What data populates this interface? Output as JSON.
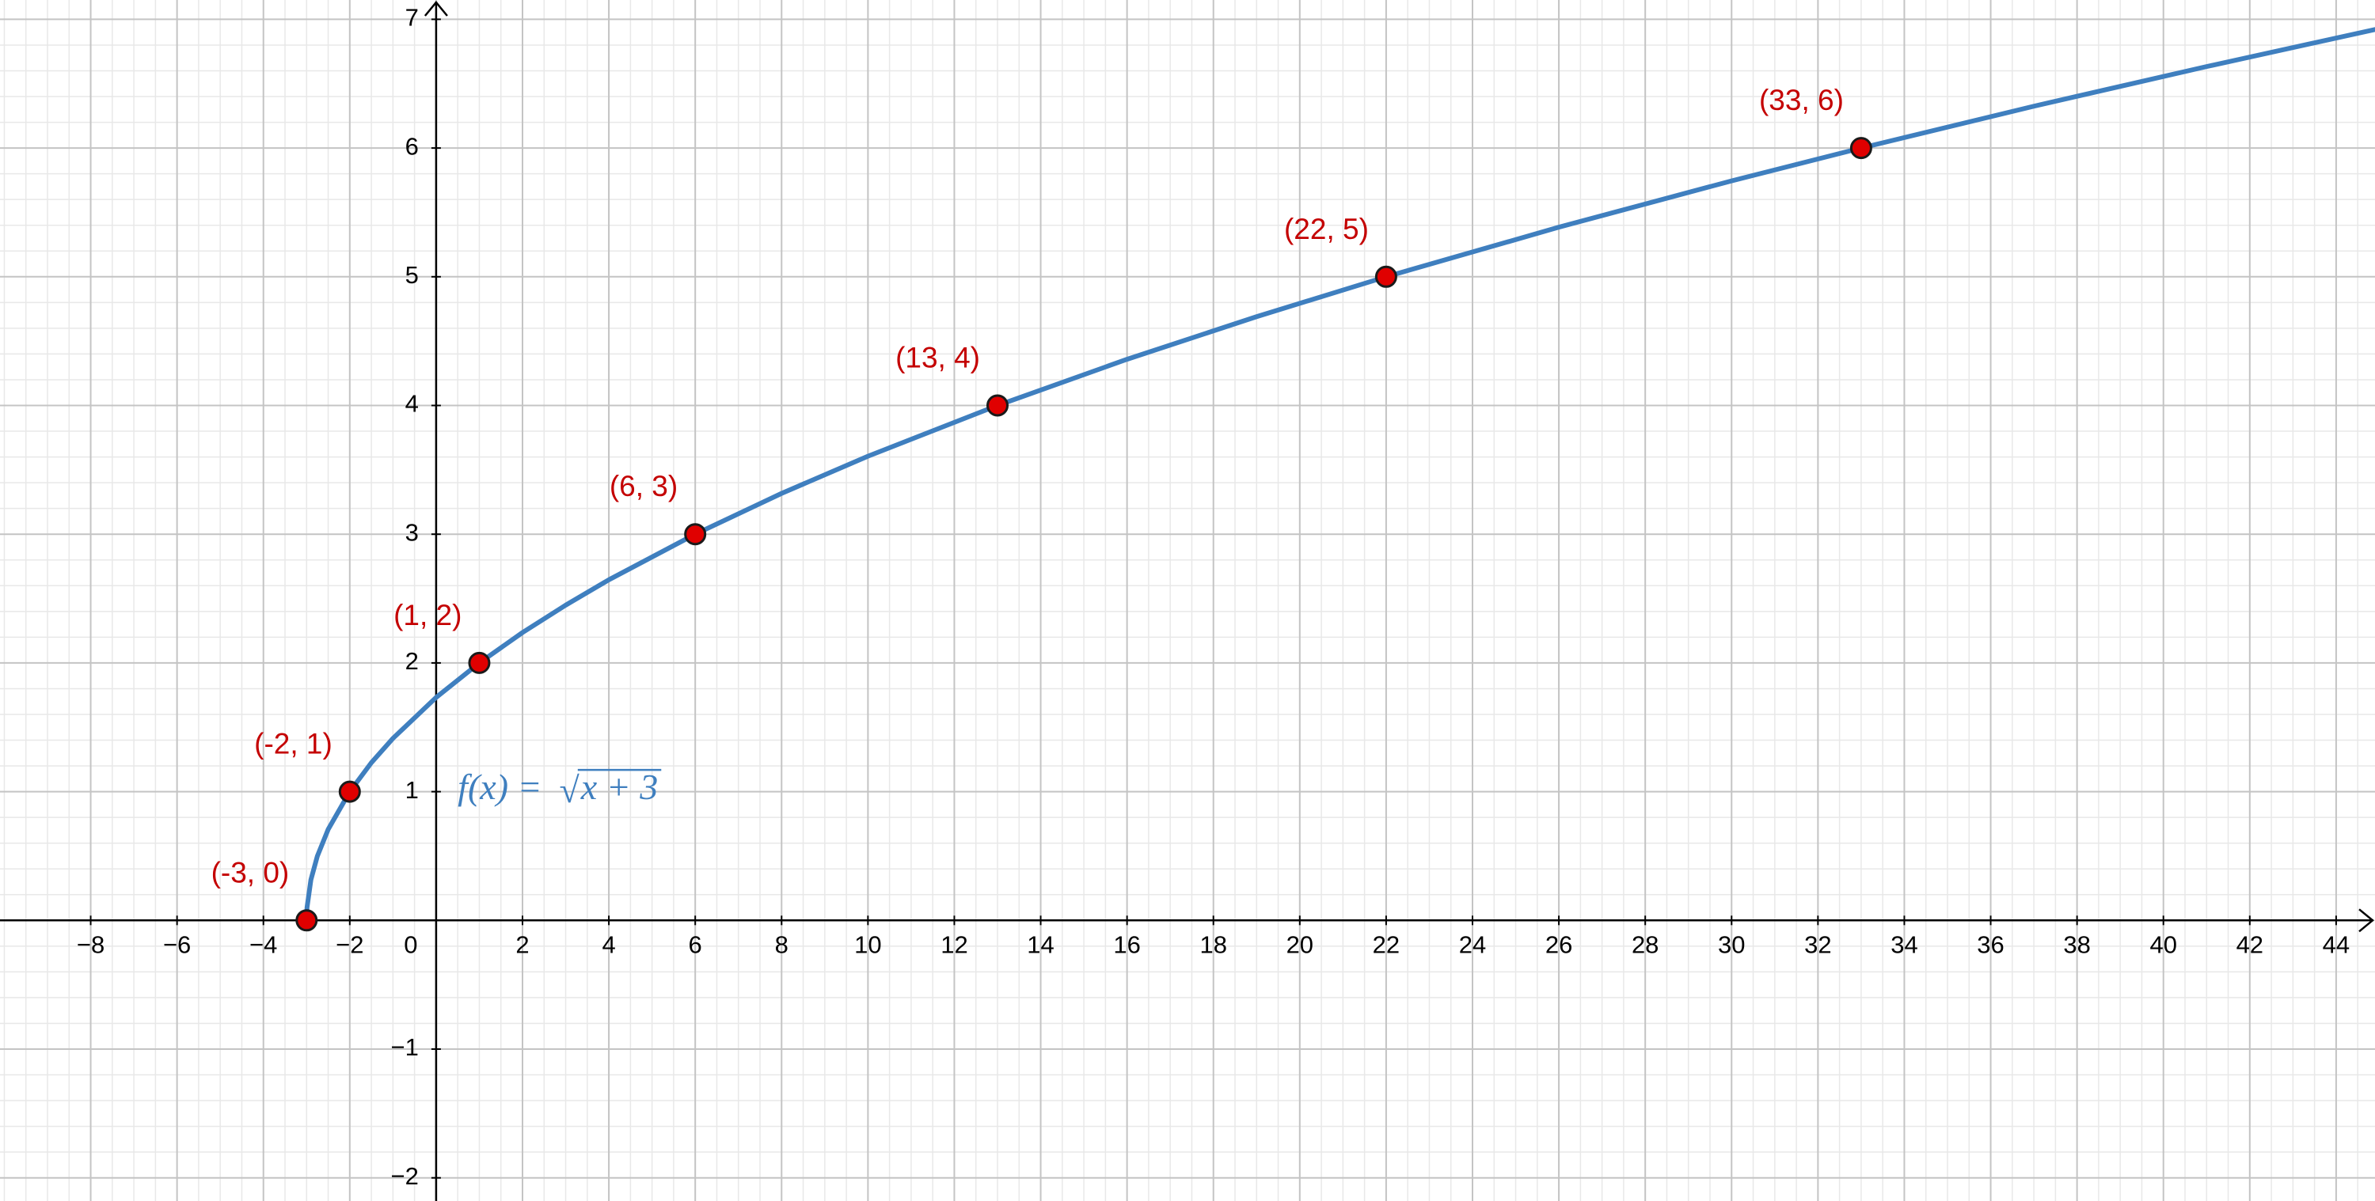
{
  "chart_data": {
    "type": "line",
    "xlim": [
      -10.1,
      44.9
    ],
    "ylim": [
      -2.18,
      7.15
    ],
    "xticks": [
      {
        "value": -8,
        "label": "−8"
      },
      {
        "value": -6,
        "label": "−6"
      },
      {
        "value": -4,
        "label": "−4"
      },
      {
        "value": -2,
        "label": "−2"
      },
      0,
      2,
      4,
      6,
      8,
      10,
      12,
      14,
      16,
      18,
      20,
      22,
      24,
      26,
      28,
      30,
      32,
      34,
      36,
      38,
      40,
      42,
      44
    ],
    "yticks": [
      {
        "value": -2,
        "label": "−2"
      },
      {
        "value": -1,
        "label": "−1"
      },
      1,
      2,
      3,
      4,
      5,
      6,
      7
    ],
    "xminor": 0.5,
    "yminor": 0.2,
    "grid": true,
    "series": [
      {
        "mark": "line",
        "color": "#3f7fbf",
        "x": [
          -3,
          -2.99,
          -2.9,
          -2.75,
          -2.5,
          -2,
          -1.5,
          -1,
          0,
          1,
          2,
          3,
          4,
          6,
          8,
          10,
          13,
          16,
          19,
          22,
          26,
          30,
          33,
          37,
          41,
          45
        ],
        "values": [
          0,
          0.1,
          0.316,
          0.5,
          0.707,
          1,
          1.225,
          1.414,
          1.732,
          2,
          2.236,
          2.449,
          2.646,
          3,
          3.317,
          3.606,
          4,
          4.359,
          4.69,
          5,
          5.385,
          5.745,
          6,
          6.325,
          6.633,
          6.928
        ]
      },
      {
        "mark": "point",
        "color": "#e00000",
        "x": [
          -3,
          -2,
          1,
          6,
          13,
          22,
          33
        ],
        "values": [
          0,
          1,
          2,
          3,
          4,
          5,
          6
        ],
        "value_labels": [
          "(-3, 0)",
          "(-2, 1)",
          "(1, 2)",
          "(6, 3)",
          "(13, 4)",
          "(22, 5)",
          "(33, 6)"
        ]
      }
    ],
    "annotation": {
      "lhs": "f(x) =",
      "radical": "√",
      "radicand": "x + 3"
    }
  }
}
